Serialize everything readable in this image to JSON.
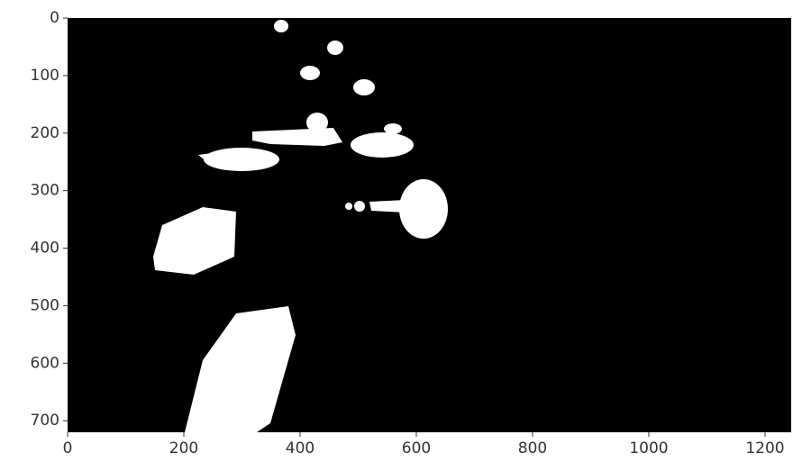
{
  "chart_data": {
    "type": "image",
    "xlim": [
      0,
      1245
    ],
    "ylim": [
      720,
      0
    ],
    "xticks": [
      0,
      200,
      400,
      600,
      800,
      1000,
      1200
    ],
    "yticks": [
      0,
      100,
      200,
      300,
      400,
      500,
      600,
      700
    ]
  }
}
